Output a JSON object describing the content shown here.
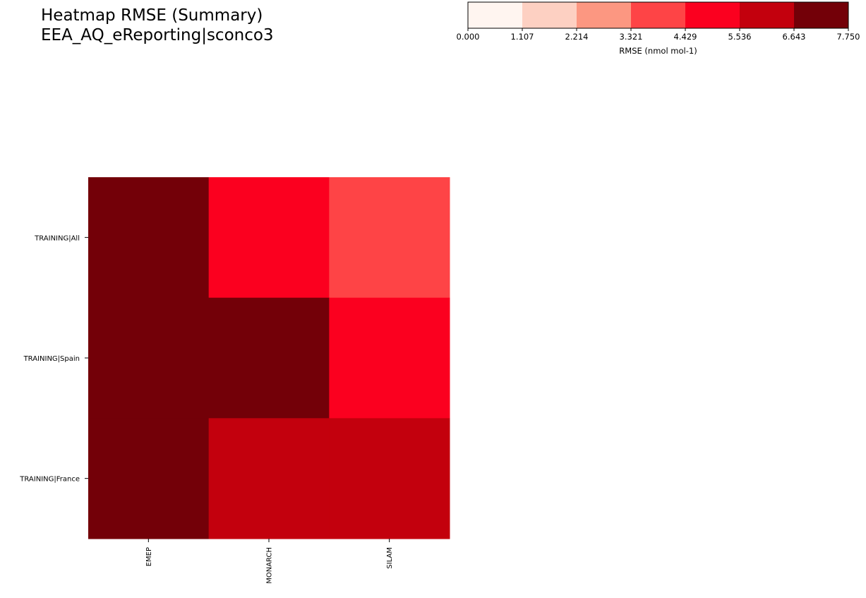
{
  "title_lines": [
    "Heatmap RMSE (Summary)",
    "EEA_AQ_eReporting|sconco3"
  ],
  "chart_data": {
    "type": "heatmap",
    "title": "Heatmap RMSE (Summary)\nEEA_AQ_eReporting|sconco3",
    "x_categories": [
      "EMEP",
      "MONARCH",
      "SILAM"
    ],
    "y_categories": [
      "TRAINING|All",
      "TRAINING|Spain",
      "TRAINING|France"
    ],
    "values": [
      [
        7.2,
        5.0,
        4.0
      ],
      [
        7.2,
        7.2,
        5.0
      ],
      [
        7.2,
        6.1,
        6.1
      ]
    ],
    "colorbar": {
      "label": "RMSE (nmol mol-1)",
      "ticks": [
        "0.000",
        "1.107",
        "2.214",
        "3.321",
        "4.429",
        "5.536",
        "6.643",
        "7.750"
      ],
      "range": [
        0,
        7.75
      ],
      "colors": [
        "#fff5f0",
        "#fdd0c2",
        "#fc9781",
        "#fe4446",
        "#fb001f",
        "#c3000d",
        "#730008"
      ]
    },
    "grid": false
  }
}
